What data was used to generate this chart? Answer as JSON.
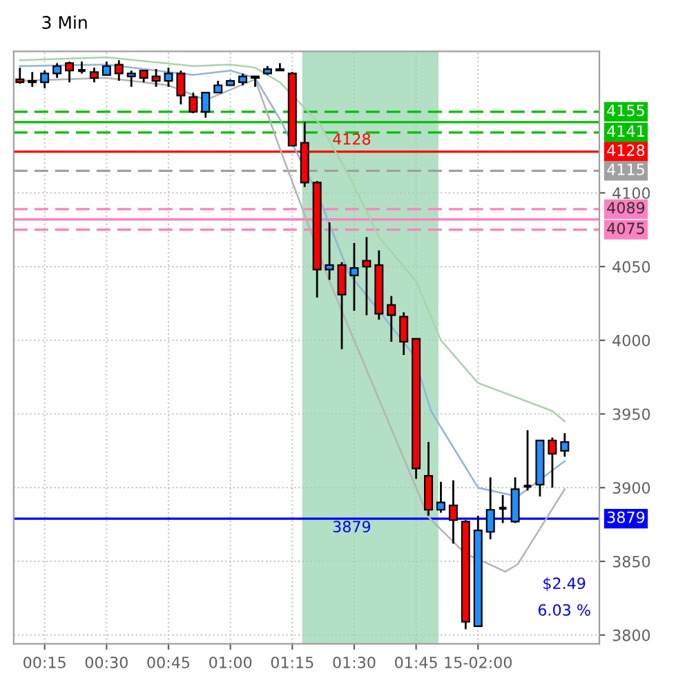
{
  "chart_data": {
    "type": "candlestick",
    "title": "3 Min",
    "x": [
      0.15,
      0.2,
      0.25,
      0.3,
      0.35,
      0.4,
      0.45,
      0.5,
      0.55,
      0.6,
      0.65,
      0.7,
      0.75,
      0.8,
      0.85,
      0.9,
      0.95,
      1.0,
      1.05,
      1.1,
      1.15,
      1.2,
      1.25,
      1.3,
      1.35,
      1.4,
      1.45,
      1.5,
      1.55,
      1.6,
      1.65,
      1.7,
      1.75,
      1.8,
      1.85,
      1.9,
      1.95,
      2.0,
      2.05,
      2.1,
      2.15,
      2.2,
      2.25,
      2.3,
      2.35
    ],
    "ohlc": [
      [
        4177,
        4185,
        4174,
        4175
      ],
      [
        4176,
        4182,
        4172,
        4175
      ],
      [
        4175,
        4183,
        4171,
        4181
      ],
      [
        4181,
        4188,
        4178,
        4186
      ],
      [
        4188,
        4189,
        4175,
        4183
      ],
      [
        4183,
        4189,
        4181,
        4183
      ],
      [
        4182,
        4185,
        4175,
        4178
      ],
      [
        4180,
        4189,
        4180,
        4186
      ],
      [
        4187,
        4190,
        4176,
        4181
      ],
      [
        4179,
        4183,
        4172,
        4181
      ],
      [
        4183,
        4183,
        4175,
        4178
      ],
      [
        4179,
        4184,
        4172,
        4176
      ],
      [
        4176,
        4185,
        4172,
        4181
      ],
      [
        4181,
        4183,
        4160,
        4166
      ],
      [
        4165,
        4168,
        4154,
        4155
      ],
      [
        4155,
        4168,
        4151,
        4168
      ],
      [
        4168,
        4176,
        4168,
        4173
      ],
      [
        4173,
        4177,
        4173,
        4176
      ],
      [
        4175,
        4181,
        4173,
        4179
      ],
      [
        4178,
        4179,
        4172,
        4179
      ],
      [
        4181,
        4186,
        4180,
        4184
      ],
      [
        4184,
        4188,
        4183,
        4183
      ],
      [
        4181,
        4182,
        4132,
        4132
      ],
      [
        4134,
        4148,
        4104,
        4107
      ],
      [
        4107,
        4108,
        4029,
        4048
      ],
      [
        4048,
        4080,
        4041,
        4051
      ],
      [
        4051,
        4053,
        3994,
        4031
      ],
      [
        4044,
        4066,
        4020,
        4049
      ],
      [
        4054,
        4070,
        4017,
        4050
      ],
      [
        4051,
        4061,
        4014,
        4018
      ],
      [
        4024,
        4030,
        3999,
        4017
      ],
      [
        4016,
        4019,
        3990,
        3999
      ],
      [
        4001,
        4001,
        3906,
        3913
      ],
      [
        3908,
        3931,
        3881,
        3885
      ],
      [
        3885,
        3904,
        3883,
        3890
      ],
      [
        3888,
        3905,
        3862,
        3878
      ],
      [
        3877,
        3878,
        3804,
        3809
      ],
      [
        3806,
        3881,
        3806,
        3871
      ],
      [
        3870,
        3907,
        3865,
        3885
      ],
      [
        3886,
        3895,
        3876,
        3886
      ],
      [
        3877,
        3907,
        3876,
        3899
      ],
      [
        3901,
        3939,
        3898,
        3901
      ],
      [
        3902,
        3932,
        3894,
        3932
      ],
      [
        3932,
        3934,
        3900,
        3923
      ],
      [
        3925,
        3937,
        3921,
        3931
      ]
    ],
    "colors": [
      "#ff0000",
      "#ff0000",
      "#1e90ff",
      "#1e90ff",
      "#ff0000",
      "#000000",
      "#ff0000",
      "#1e90ff",
      "#ff0000",
      "#1e90ff",
      "#ff0000",
      "#ff0000",
      "#1e90ff",
      "#ff0000",
      "#ff0000",
      "#1e90ff",
      "#1e90ff",
      "#1e90ff",
      "#1e90ff",
      "#1e90ff",
      "#1e90ff",
      "#ff0000",
      "#ff0000",
      "#ff0000",
      "#ff0000",
      "#1e90ff",
      "#ff0000",
      "#1e90ff",
      "#ff0000",
      "#ff0000",
      "#ff0000",
      "#ff0000",
      "#ff0000",
      "#ff0000",
      "#1e90ff",
      "#ff0000",
      "#ff0000",
      "#1e90ff",
      "#1e90ff",
      "#000000",
      "#1e90ff",
      "#000000",
      "#1e90ff",
      "#ff0000",
      "#1e90ff"
    ],
    "series": [
      {
        "type": "line",
        "color": "#a8d4a8",
        "x": [
          0.15,
          0.5,
          0.85,
          1.0,
          1.1,
          1.2,
          1.36,
          1.475,
          1.6,
          1.75,
          1.85,
          2.0,
          2.3,
          2.35
        ],
        "values": [
          4190,
          4192,
          4186,
          4187,
          4185,
          4175,
          4147,
          4113,
          4070,
          4040,
          4000,
          3971,
          3952,
          3945
        ]
      },
      {
        "type": "line",
        "color": "#8fb4e0",
        "x": [
          0.15,
          0.5,
          0.85,
          1.0,
          1.1,
          1.2,
          1.35,
          1.48,
          1.6,
          1.74,
          1.81,
          2.0,
          2.16,
          2.35
        ],
        "values": [
          4186,
          4187,
          4180,
          4183,
          4178,
          4150,
          4100,
          4045,
          4020,
          3990,
          3952,
          3900,
          3894,
          3918
        ]
      },
      {
        "type": "line",
        "color": "#b4b4b4",
        "x": [
          0.15,
          0.5,
          0.75,
          0.9,
          1.0,
          1.1,
          1.2,
          1.4,
          1.6,
          1.8,
          1.95,
          2.02,
          2.11,
          2.16,
          2.35
        ],
        "values": [
          4176,
          4178,
          4173,
          4163,
          4170,
          4177,
          4130,
          4040,
          3960,
          3880,
          3855,
          3850,
          3843,
          3848,
          3899
        ]
      }
    ],
    "xlim": [
      0.125,
      2.49
    ],
    "xticks": [
      {
        "value": 0.25,
        "label": "00:15"
      },
      {
        "value": 0.5,
        "label": "00:30"
      },
      {
        "value": 0.75,
        "label": "00:45"
      },
      {
        "value": 1.0,
        "label": "01:00"
      },
      {
        "value": 1.25,
        "label": "01:15"
      },
      {
        "value": 1.5,
        "label": "01:30"
      },
      {
        "value": 1.75,
        "label": "01:45"
      },
      {
        "value": 2.0,
        "label": "15-02:00"
      }
    ],
    "ylim": [
      3794,
      4196
    ],
    "yticks": [
      3800,
      3850,
      3900,
      3950,
      4000,
      4050,
      4100
    ],
    "grid": true,
    "bands": [
      {
        "axis": "x",
        "from": 1.29,
        "to": 1.84,
        "color": "#9ad4b0"
      }
    ],
    "ref_lines": [
      {
        "axis": "y",
        "value": 4155,
        "label": "4155",
        "color": "#00c000",
        "line_style": "dashed"
      },
      {
        "axis": "y",
        "value": 4148,
        "label": null,
        "color": "#00c000",
        "line_style": "solid"
      },
      {
        "axis": "y",
        "value": 4141,
        "label": "4141",
        "color": "#00c000",
        "line_style": "dashed"
      },
      {
        "axis": "y",
        "value": 4128,
        "label": "4128",
        "color": "#ff0000",
        "line_style": "solid"
      },
      {
        "axis": "y",
        "value": 4115,
        "label": "4115",
        "color": "#a0a0a0",
        "line_style": "dashed"
      },
      {
        "axis": "y",
        "value": 4089,
        "label": "4089",
        "color": "#ff80c0",
        "line_style": "dashed"
      },
      {
        "axis": "y",
        "value": 4082,
        "label": null,
        "color": "#ff80c0",
        "line_style": "solid"
      },
      {
        "axis": "y",
        "value": 4075,
        "label": "4075",
        "color": "#ff80c0",
        "line_style": "dashed"
      },
      {
        "axis": "y",
        "value": 3879,
        "label": "3879",
        "color": "#0000ff",
        "line_style": "solid"
      }
    ],
    "annotations": [
      {
        "text": "4128",
        "x": 1.49,
        "y": 4128
      },
      {
        "text": "3879",
        "x": 1.49,
        "y": 3879
      },
      "$2.49",
      "6.03 %"
    ]
  }
}
